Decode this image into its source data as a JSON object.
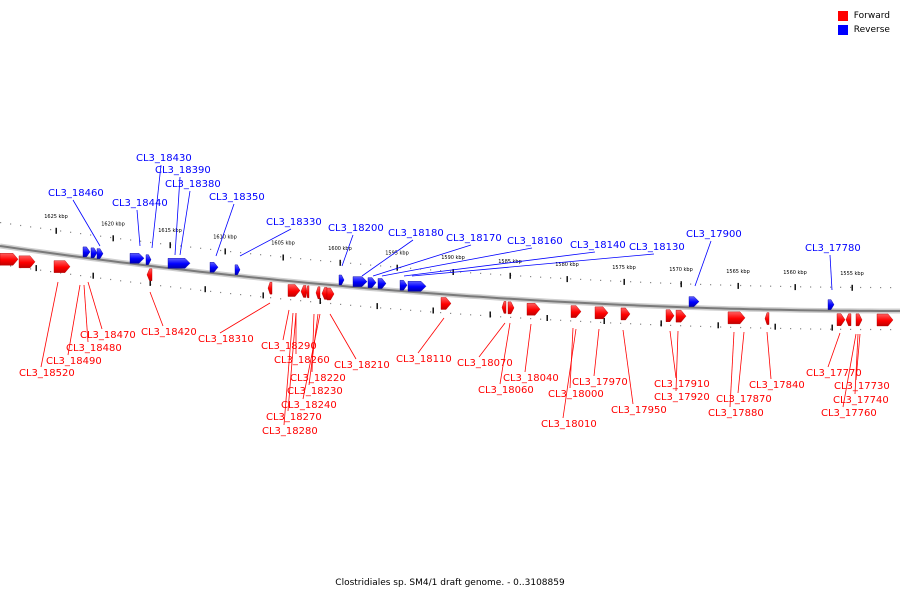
{
  "legend": {
    "forward": {
      "label": "Forward",
      "color": "#ff0000"
    },
    "reverse": {
      "label": "Reverse",
      "color": "#0000ff"
    }
  },
  "caption": "Clostridiales sp. SM4/1 draft genome. - 0..3108859",
  "kbp_labels": [
    "1625 kbp",
    "1620 kbp",
    "1615 kbp",
    "1610 kbp",
    "1605 kbp",
    "1600 kbp",
    "1595 kbp",
    "1590 kbp",
    "1585 kbp",
    "1580 kbp",
    "1575 kbp",
    "1570 kbp",
    "1565 kbp",
    "1560 kbp",
    "1555 kbp"
  ],
  "reverse_genes": [
    "CL3_18460",
    "CL3_18440",
    "CL3_18430",
    "CL3_18390",
    "CL3_18380",
    "CL3_18350",
    "CL3_18330",
    "CL3_18200",
    "CL3_18180",
    "CL3_18170",
    "CL3_18160",
    "CL3_18140",
    "CL3_18130",
    "CL3_17900",
    "CL3_17780"
  ],
  "forward_genes": [
    "CL3_18470",
    "CL3_18480",
    "CL3_18490",
    "CL3_18520",
    "CL3_18420",
    "CL3_18310",
    "CL3_18290",
    "CL3_18260",
    "CL3_18220",
    "CL3_18230",
    "CL3_18240",
    "CL3_18270",
    "CL3_18280",
    "CL3_18210",
    "CL3_18110",
    "CL3_18070",
    "CL3_18060",
    "CL3_18040",
    "CL3_18000",
    "CL3_18010",
    "CL3_17970",
    "CL3_17950",
    "CL3_17910",
    "CL3_17920",
    "CL3_17870",
    "CL3_17880",
    "CL3_17840",
    "CL3_17770",
    "CL3_17730",
    "CL3_17740",
    "CL3_17760"
  ]
}
